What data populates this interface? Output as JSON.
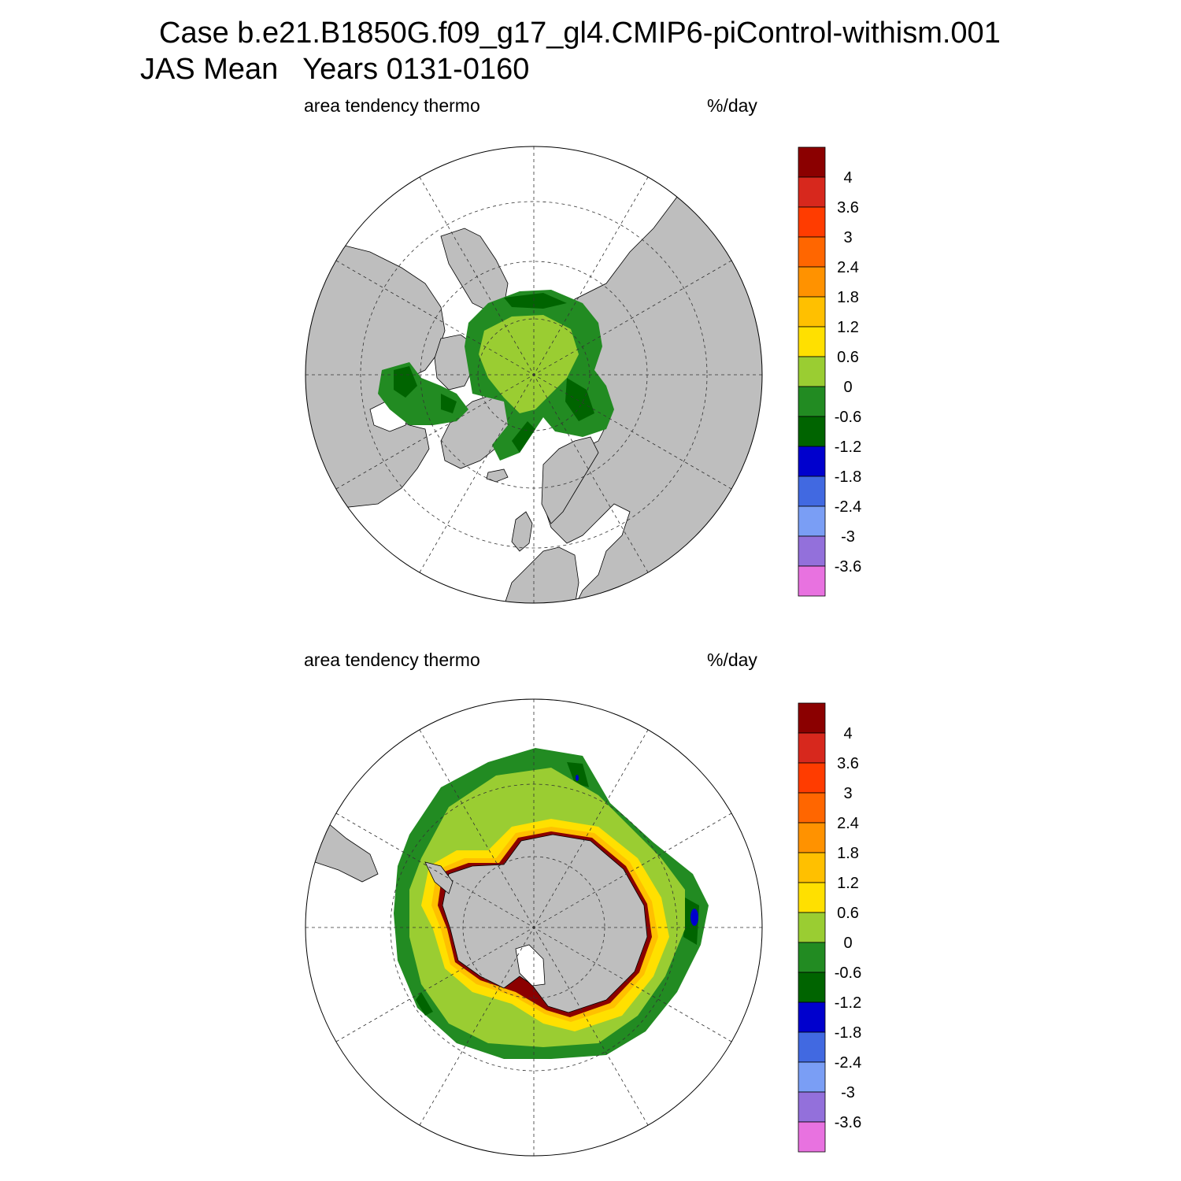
{
  "figure": {
    "title_line1": "Case b.e21.B1850G.f09_g17_gl4.CMIP6-piControl-withism.001",
    "title_line2": "JAS Mean   Years 0131-0160"
  },
  "panels": [
    {
      "id": "north",
      "left_label": "area tendency thermo",
      "right_label": "%/day",
      "hemisphere": "Northern Hemisphere polar stereographic",
      "land_color": "#bebebe",
      "ocean_color": "#ffffff"
    },
    {
      "id": "south",
      "left_label": "area tendency thermo",
      "right_label": "%/day",
      "hemisphere": "Southern Hemisphere polar stereographic",
      "land_color": "#bebebe",
      "ocean_color": "#ffffff"
    }
  ],
  "colorbar": {
    "unit": "%/day",
    "levels": [
      "4",
      "3.6",
      "3",
      "2.4",
      "1.8",
      "1.2",
      "0.6",
      "0",
      "-0.6",
      "-1.2",
      "-1.8",
      "-2.4",
      "-3",
      "-3.6"
    ],
    "colors": [
      "#8b0000",
      "#d7281d",
      "#ff3c00",
      "#ff6600",
      "#ff9200",
      "#ffc000",
      "#ffe000",
      "#9acd32",
      "#228b22",
      "#006400",
      "#0000cd",
      "#4169e1",
      "#7a9ef5",
      "#9370db",
      "#e872e0"
    ]
  }
}
